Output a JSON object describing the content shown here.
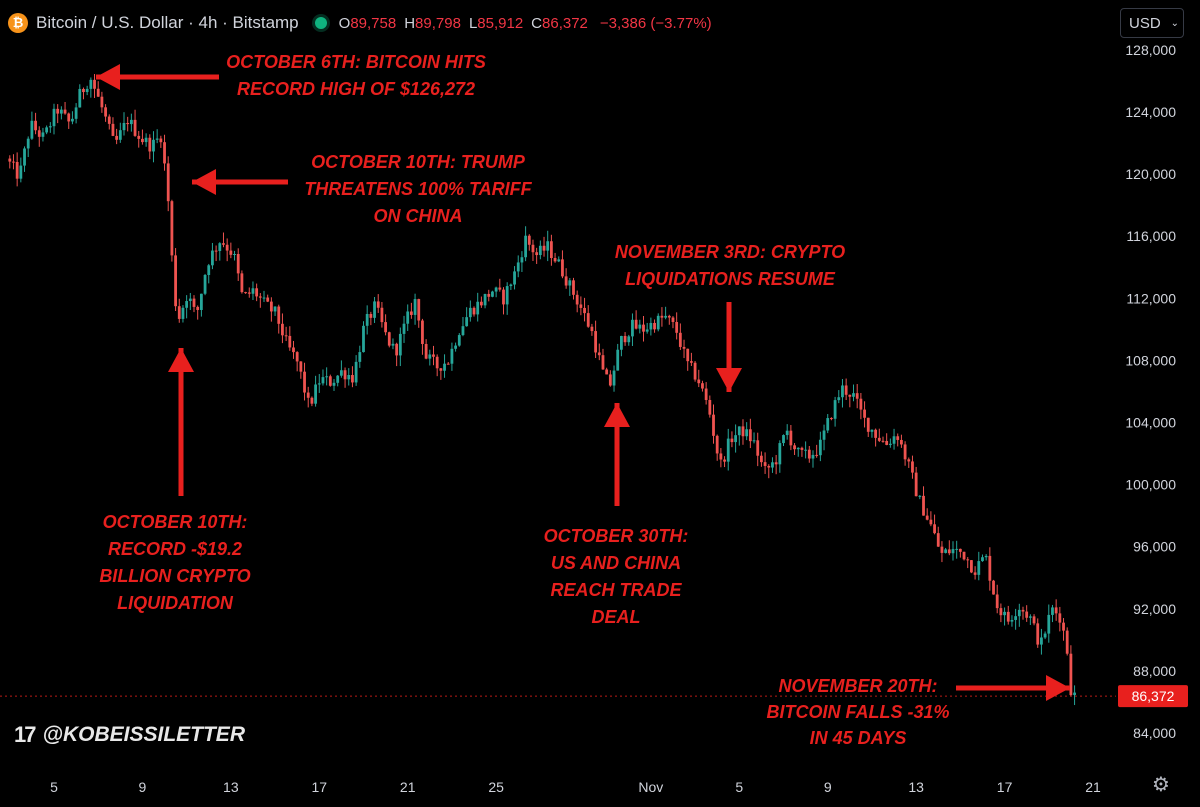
{
  "header": {
    "symbol_title": "Bitcoin / U.S. Dollar · 4h · Bitstamp",
    "btc_icon": "₿",
    "ohlc": [
      {
        "key": "O",
        "value": "89,758"
      },
      {
        "key": "H",
        "value": "89,798"
      },
      {
        "key": "L",
        "value": "85,912"
      },
      {
        "key": "C",
        "value": "86,372"
      }
    ],
    "change": "−3,386 (−3.77%)"
  },
  "currency_button": {
    "label": "USD",
    "chevron": "⌄"
  },
  "watermark": {
    "icon": "tradingview-logo-icon",
    "mark": "17",
    "handle": "@KOBEISSILETTER"
  },
  "settings_icon": "⚙",
  "colors": {
    "up": "#26a69a",
    "down": "#ef5350",
    "annotation": "#e8201e",
    "background": "#000000",
    "price_tag": "#e8201e"
  },
  "chart_data": {
    "type": "candlestick",
    "interval": "4h",
    "y_ticks": [
      84000,
      88000,
      92000,
      96000,
      100000,
      104000,
      108000,
      112000,
      116000,
      120000,
      124000,
      128000
    ],
    "y_tick_labels": [
      "84,000",
      "88,000",
      "92,000",
      "96,000",
      "100,000",
      "104,000",
      "108,000",
      "112,000",
      "116,000",
      "120,000",
      "124,000",
      "128,000"
    ],
    "ylim": [
      82800,
      128200
    ],
    "x_ticks": [
      {
        "day": 5,
        "label": "5"
      },
      {
        "day": 9,
        "label": "9"
      },
      {
        "day": 13,
        "label": "13"
      },
      {
        "day": 17,
        "label": "17"
      },
      {
        "day": 21,
        "label": "21"
      },
      {
        "day": 25,
        "label": "25"
      },
      {
        "day": 32,
        "label": "Nov"
      },
      {
        "day": 36,
        "label": "5"
      },
      {
        "day": 40,
        "label": "9"
      },
      {
        "day": 44,
        "label": "13"
      },
      {
        "day": 48,
        "label": "17"
      },
      {
        "day": 52,
        "label": "21"
      }
    ],
    "price_path": [
      {
        "day": 3.0,
        "price": 121000
      },
      {
        "day": 3.6,
        "price": 119800
      },
      {
        "day": 4.1,
        "price": 123200
      },
      {
        "day": 4.7,
        "price": 122300
      },
      {
        "day": 5.3,
        "price": 124200
      },
      {
        "day": 5.9,
        "price": 123200
      },
      {
        "day": 6.3,
        "price": 125000
      },
      {
        "day": 6.8,
        "price": 126272
      },
      {
        "day": 7.4,
        "price": 124000
      },
      {
        "day": 7.9,
        "price": 121800
      },
      {
        "day": 8.5,
        "price": 123500
      },
      {
        "day": 9.1,
        "price": 122300
      },
      {
        "day": 9.6,
        "price": 121800
      },
      {
        "day": 10.0,
        "price": 122500
      },
      {
        "day": 10.3,
        "price": 119000
      },
      {
        "day": 10.55,
        "price": 113500
      },
      {
        "day": 10.75,
        "price": 110500
      },
      {
        "day": 11.2,
        "price": 112300
      },
      {
        "day": 11.6,
        "price": 110800
      },
      {
        "day": 12.1,
        "price": 114300
      },
      {
        "day": 12.7,
        "price": 115800
      },
      {
        "day": 13.3,
        "price": 114800
      },
      {
        "day": 13.7,
        "price": 112000
      },
      {
        "day": 14.2,
        "price": 112500
      },
      {
        "day": 14.7,
        "price": 111600
      },
      {
        "day": 15.2,
        "price": 111000
      },
      {
        "day": 15.7,
        "price": 109000
      },
      {
        "day": 16.2,
        "price": 107800
      },
      {
        "day": 16.7,
        "price": 105000
      },
      {
        "day": 17.2,
        "price": 106800
      },
      {
        "day": 17.7,
        "price": 106600
      },
      {
        "day": 18.2,
        "price": 107300
      },
      {
        "day": 18.7,
        "price": 106900
      },
      {
        "day": 19.2,
        "price": 110200
      },
      {
        "day": 19.7,
        "price": 111500
      },
      {
        "day": 20.2,
        "price": 109500
      },
      {
        "day": 20.6,
        "price": 108500
      },
      {
        "day": 21.1,
        "price": 110500
      },
      {
        "day": 21.5,
        "price": 111800
      },
      {
        "day": 22.0,
        "price": 108200
      },
      {
        "day": 22.5,
        "price": 107600
      },
      {
        "day": 23.0,
        "price": 108000
      },
      {
        "day": 23.5,
        "price": 110000
      },
      {
        "day": 24.0,
        "price": 111200
      },
      {
        "day": 24.5,
        "price": 111800
      },
      {
        "day": 25.0,
        "price": 112500
      },
      {
        "day": 25.5,
        "price": 112000
      },
      {
        "day": 26.0,
        "price": 113600
      },
      {
        "day": 26.5,
        "price": 115800
      },
      {
        "day": 27.0,
        "price": 114800
      },
      {
        "day": 27.5,
        "price": 115300
      },
      {
        "day": 28.0,
        "price": 114200
      },
      {
        "day": 28.5,
        "price": 112800
      },
      {
        "day": 29.0,
        "price": 111400
      },
      {
        "day": 29.5,
        "price": 109800
      },
      {
        "day": 30.0,
        "price": 107200
      },
      {
        "day": 30.3,
        "price": 106300
      },
      {
        "day": 30.8,
        "price": 109200
      },
      {
        "day": 31.3,
        "price": 110200
      },
      {
        "day": 31.8,
        "price": 110000
      },
      {
        "day": 32.3,
        "price": 110400
      },
      {
        "day": 32.8,
        "price": 110800
      },
      {
        "day": 33.3,
        "price": 110000
      },
      {
        "day": 33.8,
        "price": 107800
      },
      {
        "day": 34.3,
        "price": 106800
      },
      {
        "day": 34.8,
        "price": 104800
      },
      {
        "day": 35.3,
        "price": 101200
      },
      {
        "day": 35.8,
        "price": 103000
      },
      {
        "day": 36.3,
        "price": 103500
      },
      {
        "day": 36.8,
        "price": 102800
      },
      {
        "day": 37.3,
        "price": 100800
      },
      {
        "day": 37.8,
        "price": 101500
      },
      {
        "day": 38.3,
        "price": 103500
      },
      {
        "day": 38.8,
        "price": 102000
      },
      {
        "day": 39.3,
        "price": 101800
      },
      {
        "day": 39.8,
        "price": 102400
      },
      {
        "day": 40.3,
        "price": 104500
      },
      {
        "day": 40.8,
        "price": 106200
      },
      {
        "day": 41.3,
        "price": 105800
      },
      {
        "day": 41.8,
        "price": 104200
      },
      {
        "day": 42.3,
        "price": 103300
      },
      {
        "day": 42.8,
        "price": 102600
      },
      {
        "day": 43.3,
        "price": 103300
      },
      {
        "day": 43.8,
        "price": 101300
      },
      {
        "day": 44.3,
        "price": 99000
      },
      {
        "day": 44.8,
        "price": 97500
      },
      {
        "day": 45.3,
        "price": 95500
      },
      {
        "day": 45.8,
        "price": 95800
      },
      {
        "day": 46.3,
        "price": 95600
      },
      {
        "day": 46.8,
        "price": 94500
      },
      {
        "day": 47.3,
        "price": 95400
      },
      {
        "day": 47.8,
        "price": 92300
      },
      {
        "day": 48.3,
        "price": 91200
      },
      {
        "day": 48.8,
        "price": 92200
      },
      {
        "day": 49.3,
        "price": 91500
      },
      {
        "day": 49.8,
        "price": 89600
      },
      {
        "day": 50.3,
        "price": 92000
      },
      {
        "day": 50.7,
        "price": 91500
      },
      {
        "day": 51.0,
        "price": 89300
      },
      {
        "day": 51.2,
        "price": 86372
      }
    ],
    "last_price": {
      "value": 86372,
      "label": "86,372"
    },
    "annotations": [
      {
        "id": "oct6",
        "lines": [
          "OCTOBER 6TH: BITCOIN HITS",
          "RECORD HIGH OF $126,272"
        ],
        "arrow": "left",
        "target_day": 6.8,
        "target_price": 126272
      },
      {
        "id": "oct10-trump",
        "lines": [
          "OCTOBER 10TH: TRUMP",
          "THREATENS 100% TARIFF",
          "ON CHINA"
        ],
        "arrow": "left",
        "target_day": 10.4,
        "target_price": 120000
      },
      {
        "id": "oct10-liq",
        "lines": [
          "OCTOBER 10TH:",
          "RECORD -$19.2",
          "BILLION CRYPTO",
          "LIQUIDATION"
        ],
        "arrow": "up",
        "target_day": 11.0,
        "target_price": 109500
      },
      {
        "id": "oct30",
        "lines": [
          "OCTOBER 30TH:",
          "US AND CHINA",
          "REACH TRADE",
          "DEAL"
        ],
        "arrow": "up",
        "target_day": 30.4,
        "target_price": 105600
      },
      {
        "id": "nov3",
        "lines": [
          "NOVEMBER 3RD: CRYPTO",
          "LIQUIDATIONS RESUME"
        ],
        "arrow": "down",
        "target_day": 34.7,
        "target_price": 106800
      },
      {
        "id": "nov20",
        "lines": [
          "NOVEMBER 20TH:",
          "BITCOIN FALLS -31%",
          "IN 45 DAYS"
        ],
        "arrow": "right",
        "target_day": 51.0,
        "target_price": 88500
      }
    ]
  }
}
